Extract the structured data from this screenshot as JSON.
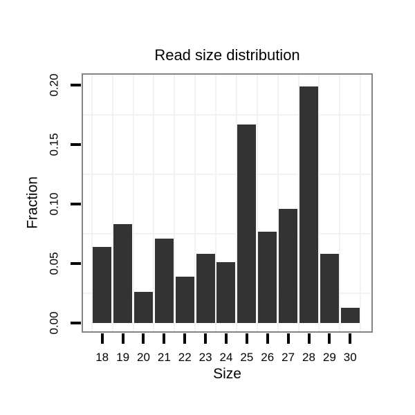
{
  "chart_data": {
    "type": "bar",
    "title": "Read size distribution",
    "xlabel": "Size",
    "ylabel": "Fraction",
    "categories": [
      "18",
      "19",
      "20",
      "21",
      "22",
      "23",
      "24",
      "25",
      "26",
      "27",
      "28",
      "29",
      "30"
    ],
    "values": [
      0.064,
      0.083,
      0.026,
      0.071,
      0.039,
      0.058,
      0.051,
      0.167,
      0.077,
      0.096,
      0.199,
      0.058,
      0.013
    ],
    "y_ticks": [
      0,
      0.05,
      0.1,
      0.15,
      0.2
    ],
    "y_tick_labels": [
      "0.00",
      "0.05",
      "0.10",
      "0.15",
      "0.20"
    ],
    "minor_gridlines_y": [
      0.025,
      0.075,
      0.125,
      0.175
    ],
    "ylim": [
      0,
      0.21
    ],
    "grid": "minor-both-axes",
    "legend": "none",
    "colors": {
      "bar": "#333333",
      "panel_border": "#848484",
      "gridline": "#f2f2f2",
      "tick": "#000000",
      "text": "#000000",
      "background": "#ffffff"
    }
  }
}
